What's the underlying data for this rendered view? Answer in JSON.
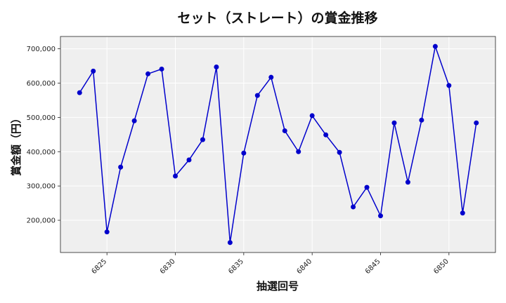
{
  "chart_data": {
    "type": "line",
    "title": "セット（ストレート）の賞金推移",
    "xlabel": "抽選回号",
    "ylabel": "賞金額（円）",
    "x": [
      6823,
      6824,
      6825,
      6826,
      6827,
      6828,
      6829,
      6830,
      6831,
      6832,
      6833,
      6834,
      6835,
      6836,
      6837,
      6838,
      6839,
      6840,
      6841,
      6842,
      6843,
      6844,
      6845,
      6846,
      6847,
      6848,
      6849,
      6850,
      6851,
      6852
    ],
    "series": [
      {
        "values": [
          572000,
          635000,
          166000,
          355000,
          490000,
          627000,
          641000,
          329000,
          376000,
          435000,
          647000,
          135000,
          396000,
          564000,
          617000,
          461000,
          400000,
          505000,
          449000,
          398000,
          239000,
          296000,
          213000,
          484000,
          311000,
          492000,
          707000,
          593000,
          221000,
          484000
        ],
        "color": "#0000cc",
        "marker": "circle"
      }
    ],
    "xticks": [
      6825,
      6830,
      6835,
      6840,
      6845,
      6850
    ],
    "xtick_labels": [
      "6825",
      "6830",
      "6835",
      "6840",
      "6845",
      "6850"
    ],
    "yticks": [
      200000,
      300000,
      400000,
      500000,
      600000,
      700000
    ],
    "ytick_labels": [
      "200,000",
      "300,000",
      "400,000",
      "500,000",
      "600,000",
      "700,000"
    ],
    "xlim": [
      6821.6,
      6853.4
    ],
    "ylim": [
      106000,
      736000
    ],
    "grid": true,
    "plot_background": "#efefef",
    "grid_color": "#ffffff"
  }
}
